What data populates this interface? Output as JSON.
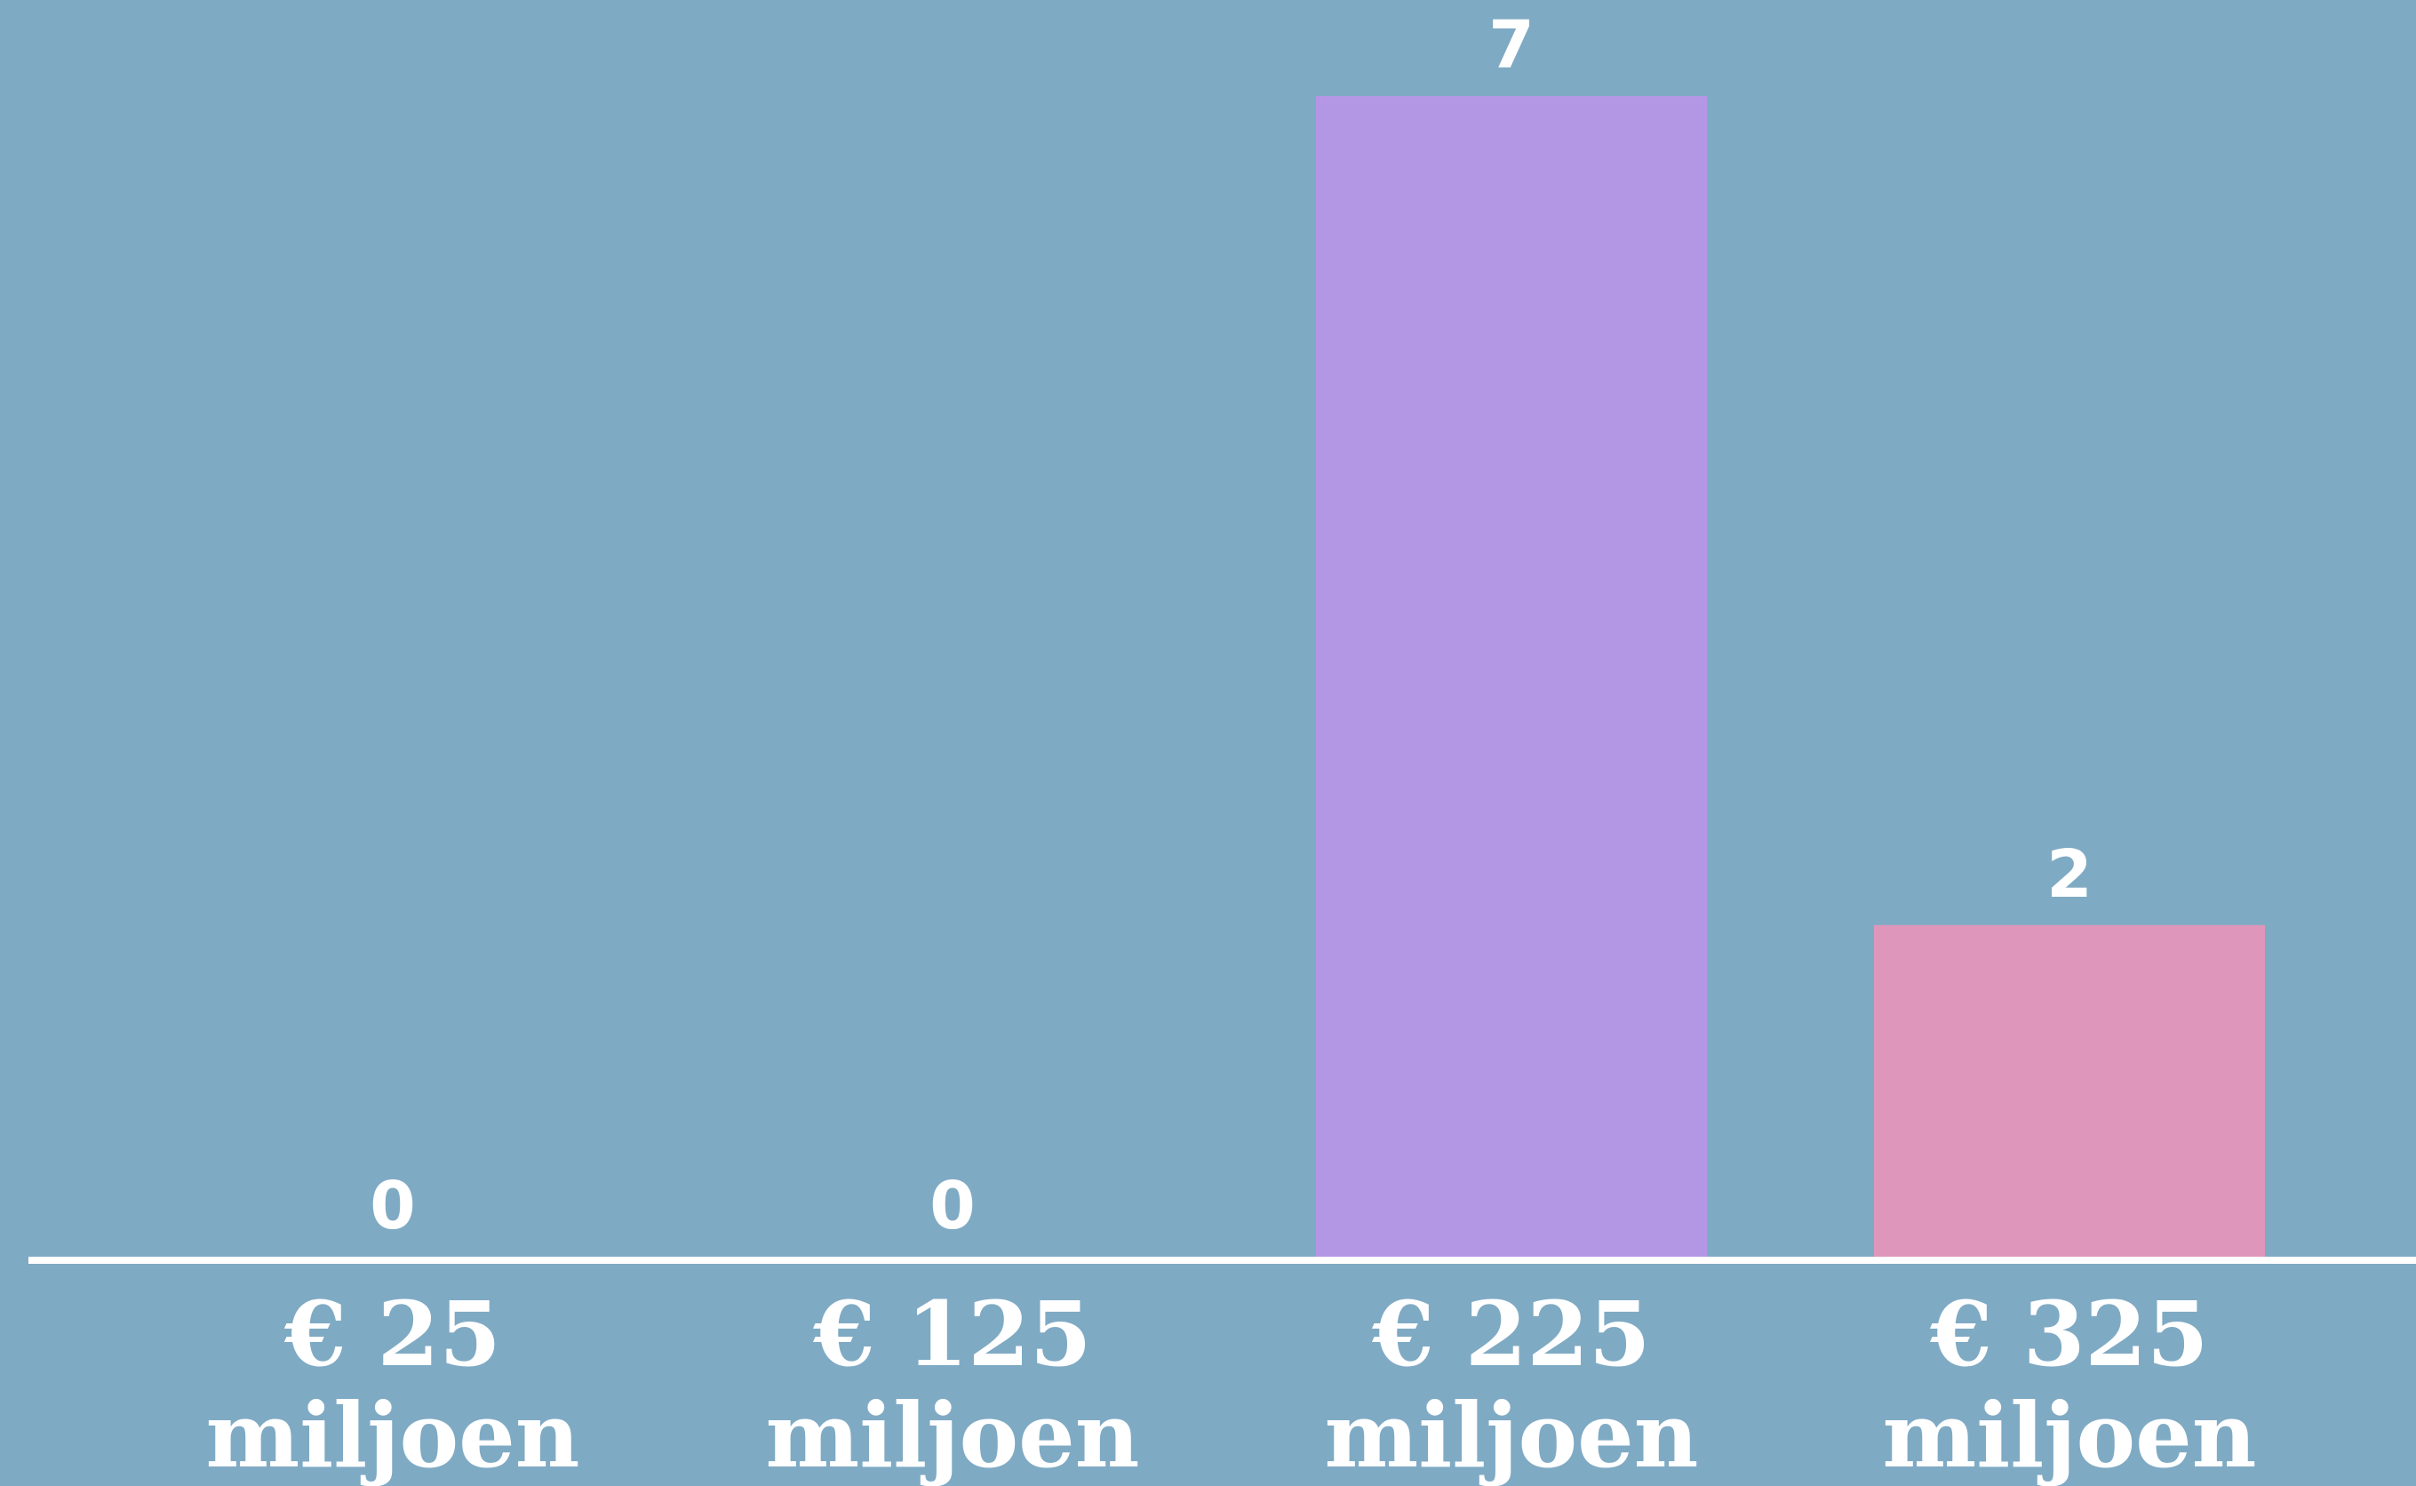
{
  "chart_data": {
    "type": "bar",
    "categories": [
      [
        "€ 25",
        "miljoen"
      ],
      [
        "€ 125",
        "miljoen"
      ],
      [
        "€ 225",
        "miljoen"
      ],
      [
        "€ 325",
        "miljoen"
      ]
    ],
    "values": [
      0,
      0,
      7,
      2
    ],
    "ylim": [
      0,
      7
    ],
    "grid": false,
    "colors": {
      "background": "#7faac4",
      "bars": [
        "#b497e4",
        "#b497e4",
        "#b497e4",
        "#de97bb"
      ],
      "axis": "#ffffff",
      "labels": "#ffffff"
    }
  }
}
